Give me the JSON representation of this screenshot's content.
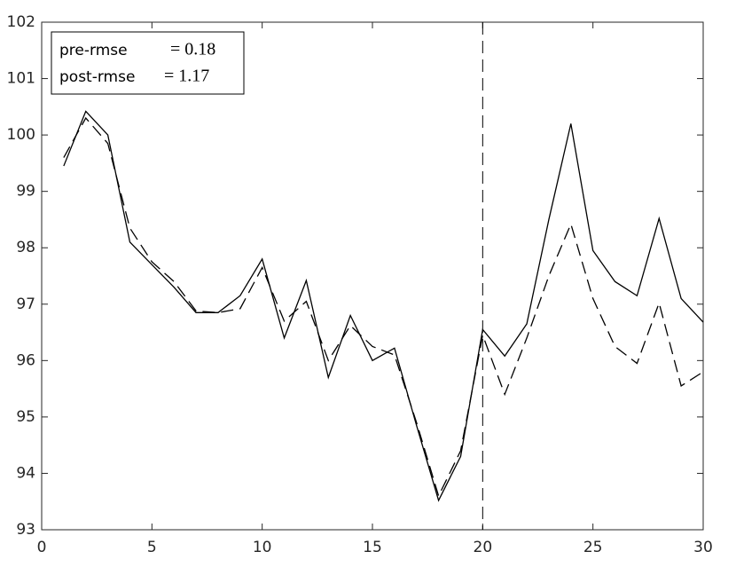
{
  "chart_data": {
    "type": "line",
    "x": [
      1,
      2,
      3,
      4,
      5,
      6,
      7,
      8,
      9,
      10,
      11,
      12,
      13,
      14,
      15,
      16,
      17,
      18,
      19,
      20,
      21,
      22,
      23,
      24,
      25,
      26,
      27,
      28,
      29,
      30
    ],
    "series": [
      {
        "color": "#000000",
        "dash": "solid",
        "values": [
          99.45,
          100.42,
          100.0,
          98.1,
          97.7,
          97.3,
          96.85,
          96.85,
          97.15,
          97.8,
          96.4,
          97.42,
          95.7,
          96.8,
          96.0,
          96.22,
          94.85,
          93.52,
          94.3,
          96.55,
          96.08,
          96.65,
          98.5,
          100.2,
          97.95,
          97.4,
          97.15,
          98.52,
          97.1,
          96.68
        ]
      },
      {
        "color": "#000000",
        "dash": "dashed",
        "values": [
          99.6,
          100.3,
          99.85,
          98.35,
          97.75,
          97.4,
          96.88,
          96.85,
          96.92,
          97.65,
          96.7,
          97.05,
          96.0,
          96.62,
          96.25,
          96.1,
          94.9,
          93.6,
          94.4,
          96.45,
          95.4,
          96.4,
          97.5,
          98.42,
          97.1,
          96.25,
          95.95,
          97.02,
          95.55,
          95.8
        ]
      }
    ],
    "vline": 20,
    "annotations": [
      {
        "label": "pre-rmse",
        "text": "= 0.18"
      },
      {
        "label": "post-rmse",
        "text": "= 1.17"
      }
    ],
    "xlim": [
      0,
      30
    ],
    "xticks": [
      0,
      5,
      10,
      15,
      20,
      25,
      30
    ],
    "ylim": [
      93,
      102
    ],
    "yticks": [
      93,
      94,
      95,
      96,
      97,
      98,
      99,
      100,
      101,
      102
    ],
    "grid": false
  }
}
